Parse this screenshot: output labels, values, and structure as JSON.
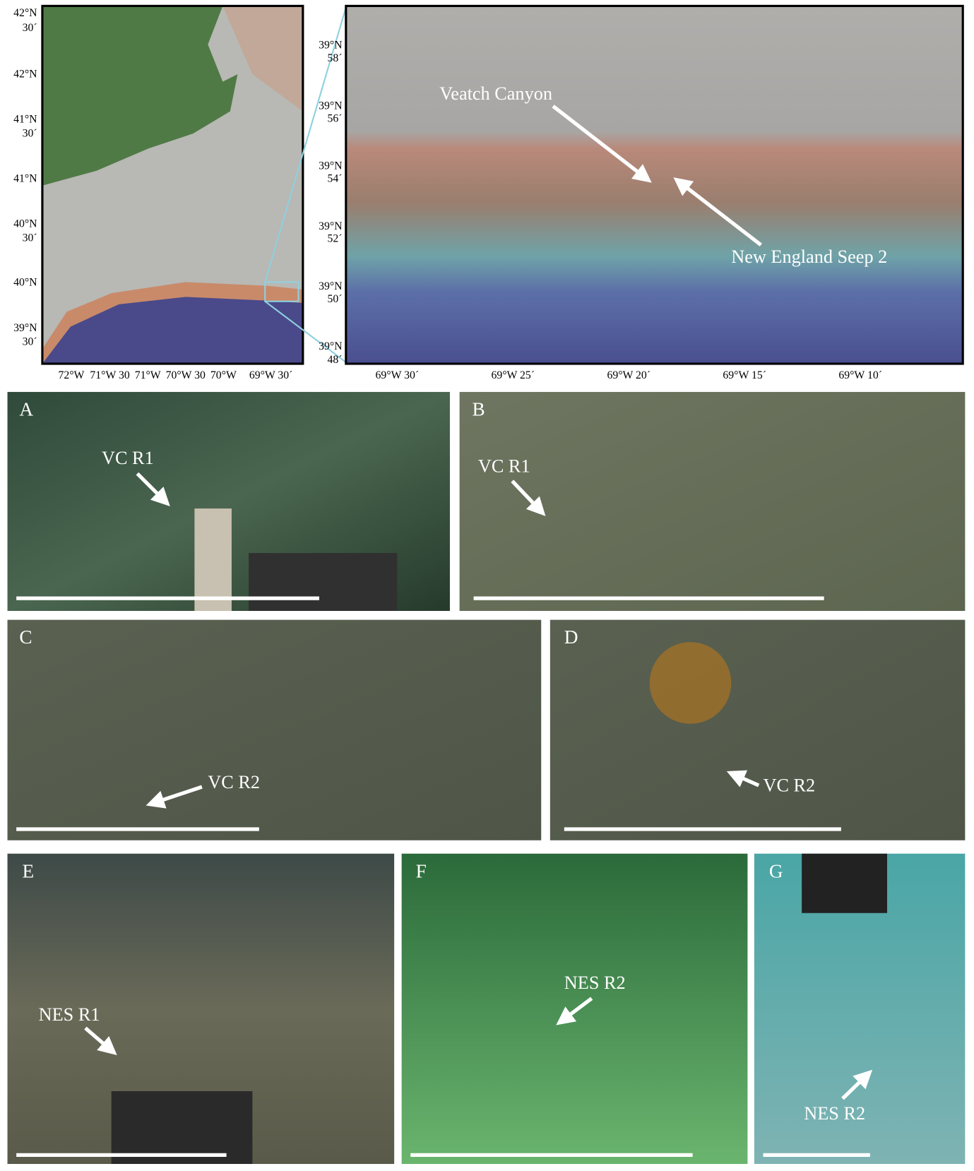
{
  "maps": {
    "overview": {
      "y_labels": [
        [
          "42°N",
          "30´"
        ],
        [
          "42°N"
        ],
        [
          "41°N",
          "30´"
        ],
        [
          "41°N"
        ],
        [
          "40°N",
          "30´"
        ],
        [
          "40°N"
        ],
        [
          "39°N",
          "30´"
        ]
      ],
      "x_labels": [
        "72°W",
        "71°W 30",
        "71°W",
        "70°W 30",
        "70°W",
        "69°W 30´"
      ]
    },
    "detail": {
      "y_labels": [
        [
          "39°N",
          "58´"
        ],
        [
          "39°N",
          "56´"
        ],
        [
          "39°N",
          "54´"
        ],
        [
          "39°N",
          "52´"
        ],
        [
          "39°N",
          "50´"
        ],
        [
          "39°N",
          "48´"
        ]
      ],
      "x_labels": [
        "69°W 30´",
        "69°W 25´",
        "69°W 20´",
        "69°W 15´",
        "69°W 10´"
      ],
      "annotations": [
        "Veatch Canyon",
        "New England Seep 2"
      ]
    }
  },
  "panels": [
    {
      "letter": "A",
      "label": "VC R1"
    },
    {
      "letter": "B",
      "label": "VC R1"
    },
    {
      "letter": "C",
      "label": "VC R2"
    },
    {
      "letter": "D",
      "label": "VC R2"
    },
    {
      "letter": "E",
      "label": "NES R1"
    },
    {
      "letter": "F",
      "label": "NES R2"
    },
    {
      "letter": "G",
      "label": "NES R2"
    }
  ]
}
